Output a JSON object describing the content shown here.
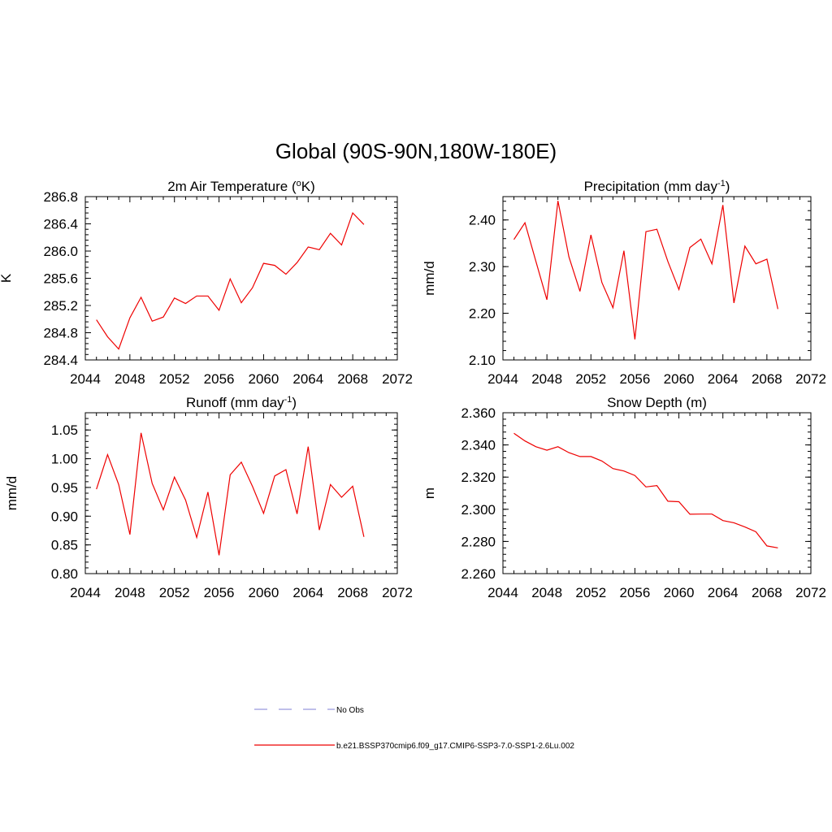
{
  "figure": {
    "title": "Global (90S-90N,180W-180E)"
  },
  "legend": [
    {
      "label": "No Obs",
      "color": "#9999dd",
      "dash": true
    },
    {
      "label": "b.e21.BSSP370cmip6.f09_g17.CMIP6-SSP3-7.0-SSP1-2.6Lu.002",
      "color": "#ee0000",
      "dash": false
    }
  ],
  "chart_data": [
    {
      "type": "line",
      "title": "2m Air Temperature (",
      "title_sup": "o",
      "title_after": "K)",
      "ylabel": "K",
      "xlim": [
        2044,
        2072
      ],
      "ylim": [
        284.4,
        286.8
      ],
      "xticks": [
        "2044",
        "2048",
        "2052",
        "2056",
        "2060",
        "2064",
        "2068",
        "2072"
      ],
      "yticks": [
        "284.4",
        "284.8",
        "285.2",
        "285.6",
        "286.0",
        "286.4",
        "286.8"
      ],
      "series": [
        {
          "color": "#ee0000",
          "x": [
            2045,
            2046,
            2047,
            2048,
            2049,
            2050,
            2051,
            2052,
            2053,
            2054,
            2055,
            2056,
            2057,
            2058,
            2059,
            2060,
            2061,
            2062,
            2063,
            2064,
            2065,
            2066,
            2067,
            2068,
            2069
          ],
          "y": [
            284.99,
            284.74,
            284.56,
            285.02,
            285.32,
            284.97,
            285.03,
            285.31,
            285.23,
            285.34,
            285.34,
            285.13,
            285.59,
            285.24,
            285.46,
            285.82,
            285.79,
            285.66,
            285.83,
            286.06,
            286.02,
            286.26,
            286.09,
            286.56,
            286.39
          ]
        }
      ]
    },
    {
      "type": "line",
      "title": "Precipitation (mm day",
      "title_sup": "-1",
      "title_after": ")",
      "ylabel": "mm/d",
      "xlim": [
        2044,
        2072
      ],
      "ylim": [
        2.1,
        2.45
      ],
      "xticks": [
        "2044",
        "2048",
        "2052",
        "2056",
        "2060",
        "2064",
        "2068",
        "2072"
      ],
      "yticks": [
        "2.10",
        "2.20",
        "2.30",
        "2.40"
      ],
      "ytick_values": [
        2.1,
        2.2,
        2.3,
        2.4
      ],
      "series": [
        {
          "color": "#ee0000",
          "x": [
            2045,
            2046,
            2047,
            2048,
            2049,
            2050,
            2051,
            2052,
            2053,
            2054,
            2055,
            2056,
            2057,
            2058,
            2059,
            2060,
            2061,
            2062,
            2063,
            2064,
            2065,
            2066,
            2067,
            2068,
            2069
          ],
          "y": [
            2.358,
            2.394,
            2.311,
            2.229,
            2.441,
            2.321,
            2.247,
            2.368,
            2.266,
            2.212,
            2.334,
            2.144,
            2.375,
            2.38,
            2.311,
            2.251,
            2.341,
            2.359,
            2.306,
            2.432,
            2.222,
            2.344,
            2.306,
            2.316,
            2.209
          ]
        }
      ]
    },
    {
      "type": "line",
      "title": "Runoff (mm day",
      "title_sup": "-1",
      "title_after": ")",
      "ylabel": "mm/d",
      "xlim": [
        2044,
        2072
      ],
      "ylim": [
        0.8,
        1.08
      ],
      "xticks": [
        "2044",
        "2048",
        "2052",
        "2056",
        "2060",
        "2064",
        "2068",
        "2072"
      ],
      "yticks": [
        "0.80",
        "0.85",
        "0.90",
        "0.95",
        "1.00",
        "1.05"
      ],
      "ytick_values": [
        0.8,
        0.85,
        0.9,
        0.95,
        1.0,
        1.05
      ],
      "series": [
        {
          "color": "#ee0000",
          "x": [
            2045,
            2046,
            2047,
            2048,
            2049,
            2050,
            2051,
            2052,
            2053,
            2054,
            2055,
            2056,
            2057,
            2058,
            2059,
            2060,
            2061,
            2062,
            2063,
            2064,
            2065,
            2066,
            2067,
            2068,
            2069
          ],
          "y": [
            0.947,
            1.007,
            0.955,
            0.868,
            1.045,
            0.957,
            0.911,
            0.968,
            0.928,
            0.863,
            0.942,
            0.832,
            0.972,
            0.994,
            0.952,
            0.905,
            0.97,
            0.981,
            0.904,
            1.021,
            0.876,
            0.955,
            0.933,
            0.952,
            0.864
          ]
        }
      ]
    },
    {
      "type": "line",
      "title": "Snow Depth (m)",
      "title_sup": "",
      "title_after": "",
      "ylabel": "m",
      "xlim": [
        2044,
        2072
      ],
      "ylim": [
        2.26,
        2.36
      ],
      "xticks": [
        "2044",
        "2048",
        "2052",
        "2056",
        "2060",
        "2064",
        "2068",
        "2072"
      ],
      "yticks": [
        "2.260",
        "2.280",
        "2.300",
        "2.320",
        "2.340",
        "2.360"
      ],
      "ytick_values": [
        2.26,
        2.28,
        2.3,
        2.32,
        2.34,
        2.36
      ],
      "series": [
        {
          "color": "#ee0000",
          "x": [
            2045,
            2046,
            2047,
            2048,
            2049,
            2050,
            2051,
            2052,
            2053,
            2054,
            2055,
            2056,
            2057,
            2058,
            2059,
            2060,
            2061,
            2062,
            2063,
            2064,
            2065,
            2066,
            2067,
            2068,
            2069
          ],
          "y": [
            2.3472,
            2.3425,
            2.3389,
            2.3367,
            2.3389,
            2.3352,
            2.3328,
            2.3328,
            2.33,
            2.3253,
            2.3238,
            2.321,
            2.3139,
            2.3147,
            2.305,
            2.3047,
            2.2969,
            2.297,
            2.297,
            2.293,
            2.2916,
            2.289,
            2.286,
            2.2772,
            2.276
          ]
        }
      ]
    }
  ]
}
